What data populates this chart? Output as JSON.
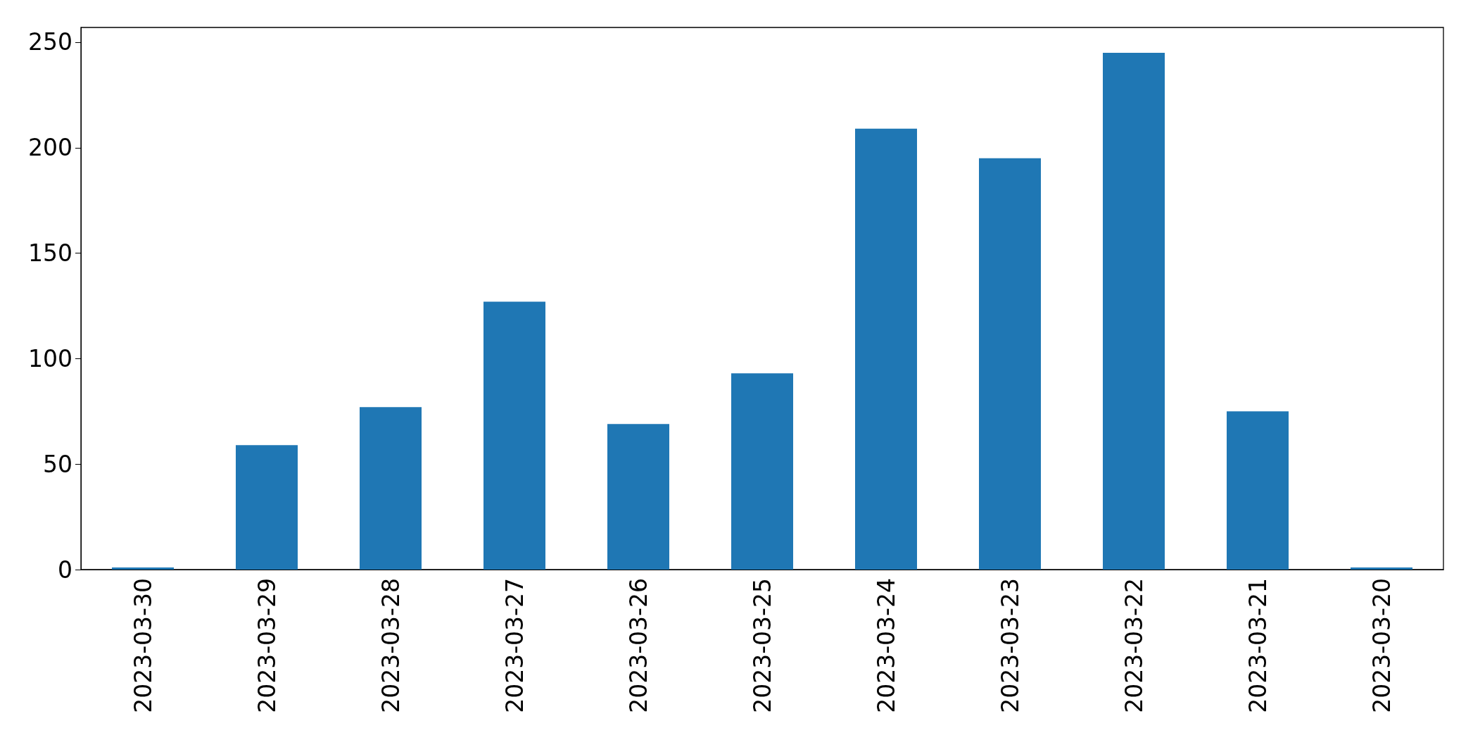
{
  "chart_data": {
    "type": "bar",
    "categories": [
      "2023-03-30",
      "2023-03-29",
      "2023-03-28",
      "2023-03-27",
      "2023-03-26",
      "2023-03-25",
      "2023-03-24",
      "2023-03-23",
      "2023-03-22",
      "2023-03-21",
      "2023-03-20"
    ],
    "values": [
      1,
      59,
      77,
      127,
      69,
      93,
      209,
      195,
      245,
      75,
      1
    ],
    "color": "#1f77b4",
    "ylim": [
      0,
      257
    ],
    "yticks": [
      0,
      50,
      100,
      150,
      200,
      250
    ],
    "grid": false
  }
}
